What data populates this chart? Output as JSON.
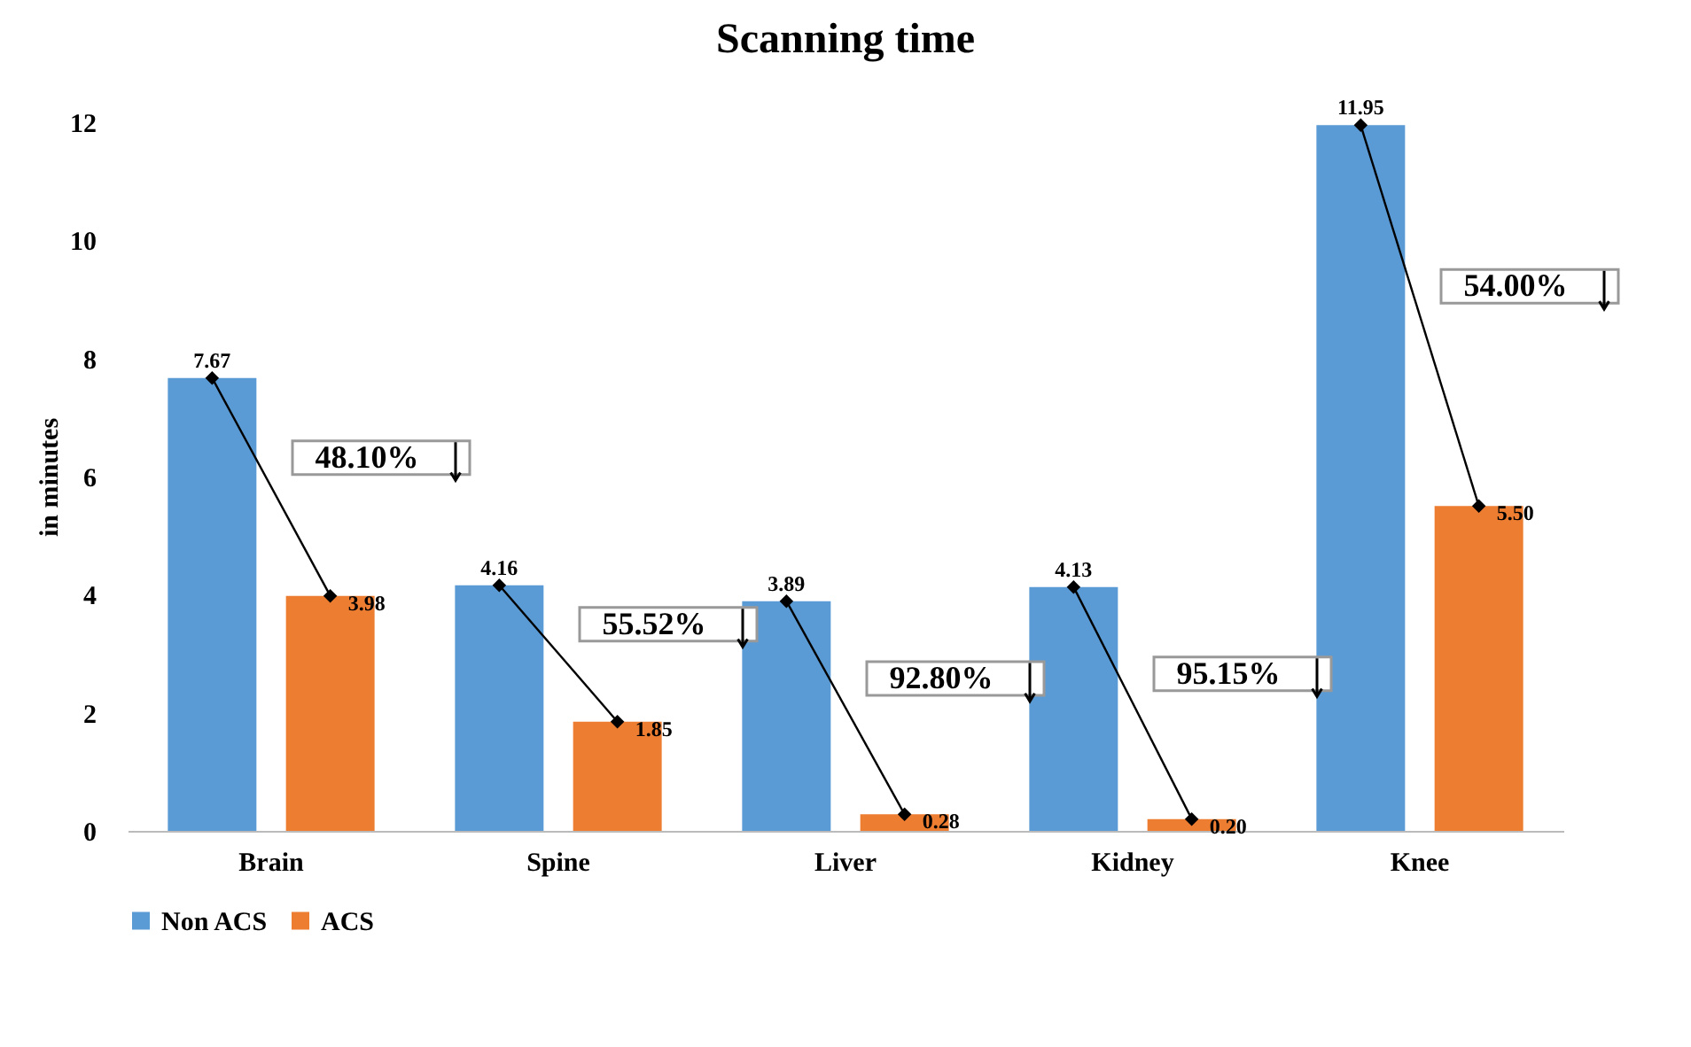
{
  "chart_data": {
    "type": "bar",
    "title": "Scanning time",
    "ylabel": "in minutes",
    "categories": [
      "Brain",
      "Spine",
      "Liver",
      "Kidney",
      "Knee"
    ],
    "series": [
      {
        "name": "Non ACS",
        "color": "#5b9bd5",
        "values": [
          7.67,
          4.16,
          3.89,
          4.13,
          11.95
        ],
        "value_labels": [
          "7.67",
          "4.16",
          "3.89",
          "4.13",
          "11.95"
        ]
      },
      {
        "name": "ACS",
        "color": "#ed7d31",
        "values": [
          3.98,
          1.85,
          0.28,
          0.2,
          5.5
        ],
        "value_labels": [
          "3.98",
          "1.85",
          "0.28",
          "0.20",
          "5.50"
        ]
      }
    ],
    "ylim": [
      0,
      12
    ],
    "yticks": [
      0,
      2,
      4,
      6,
      8,
      10,
      12
    ],
    "grid": false,
    "legend": "bottom",
    "marker": "diamond",
    "annotations": [
      "48.10%",
      "55.52%",
      "92.80%",
      "95.15%",
      "54.00%"
    ]
  }
}
